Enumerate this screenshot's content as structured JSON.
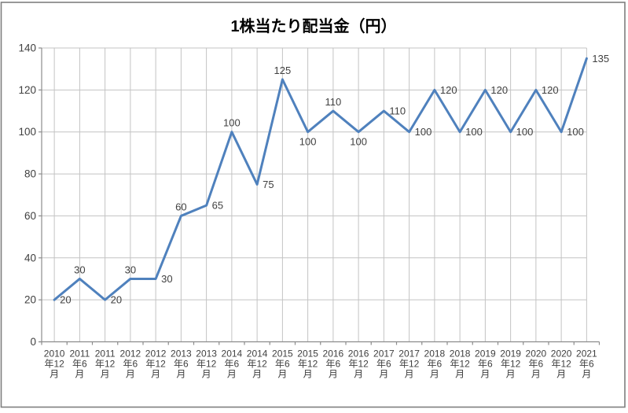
{
  "chart_data": {
    "type": "line",
    "title": "1株当たり配当金（円）",
    "categories": [
      "2010年12月",
      "2011年6月",
      "2011年12月",
      "2012年6月",
      "2012年12月",
      "2013年6月",
      "2013年12月",
      "2014年6月",
      "2014年12月",
      "2015年6月",
      "2015年12月",
      "2016年6月",
      "2016年12月",
      "2017年6月",
      "2017年12月",
      "2018年6月",
      "2018年12月",
      "2019年6月",
      "2019年12月",
      "2020年6月",
      "2020年12月",
      "2021年6月"
    ],
    "values": [
      20,
      30,
      20,
      30,
      30,
      60,
      65,
      100,
      75,
      125,
      100,
      110,
      100,
      110,
      100,
      120,
      100,
      120,
      100,
      120,
      100,
      135
    ],
    "data_label_positions": [
      "right",
      "above",
      "right",
      "above",
      "right",
      "above",
      "right",
      "above",
      "right",
      "above",
      "below",
      "above",
      "below",
      "right",
      "right",
      "right",
      "right",
      "right",
      "right",
      "right",
      "right",
      "right"
    ],
    "xlabel": "",
    "ylabel": "",
    "ylim": [
      0,
      140
    ],
    "ytick_interval": 20,
    "grid": true,
    "legend": false,
    "colors": {
      "line": "#4F81BD",
      "grid": "#C3C3C3",
      "axis": "#8C8C8C",
      "tick_label": "#404040",
      "data_label": "#404040",
      "title": "#000000",
      "border": "#7F7F7F",
      "background": "#FFFFFF"
    }
  }
}
